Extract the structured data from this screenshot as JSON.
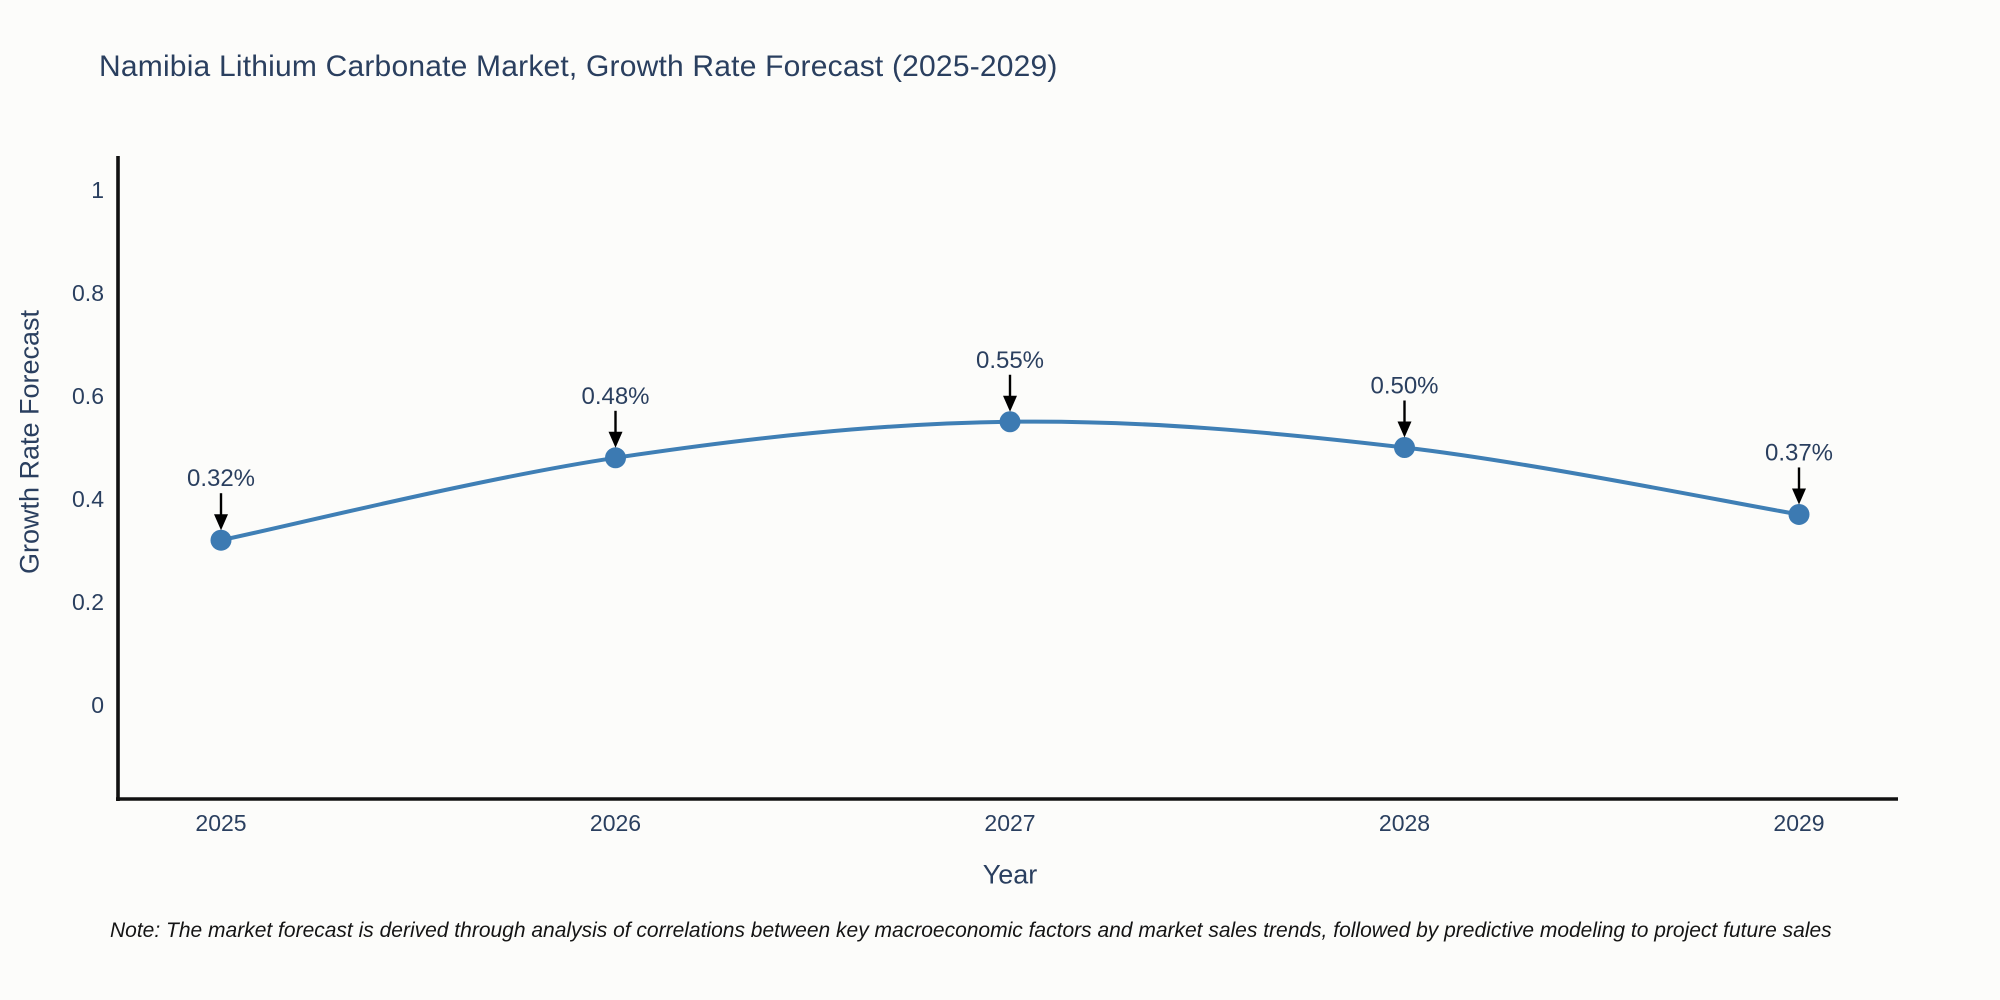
{
  "title": "Namibia Lithium Carbonate Market, Growth Rate Forecast (2025-2029)",
  "note": "Note: The market forecast is derived through analysis of correlations between key macroeconomic factors and market sales trends, followed by predictive modeling to project future sales",
  "chart_data": {
    "type": "line",
    "title": "Namibia Lithium Carbonate Market, Growth Rate Forecast (2025-2029)",
    "xlabel": "Year",
    "ylabel": "Growth Rate Forecast",
    "categories": [
      "2025",
      "2026",
      "2027",
      "2028",
      "2029"
    ],
    "series": [
      {
        "name": "Growth Rate Forecast",
        "values": [
          0.32,
          0.48,
          0.55,
          0.5,
          0.37
        ]
      }
    ],
    "annotations": [
      "0.32%",
      "0.48%",
      "0.55%",
      "0.50%",
      "0.37%"
    ],
    "yticks": [
      "1",
      "0.8",
      "0.6",
      "0.4",
      "0.2",
      "0"
    ],
    "ytick_values": [
      1,
      0.8,
      0.6,
      0.4,
      0.2,
      0
    ],
    "ylim": [
      -0.18,
      1.07
    ],
    "grid": false,
    "legend_position": "none",
    "line_shape": "spline",
    "colors": {
      "line": "#3f7fb5",
      "marker": "#3c7ab2",
      "axis": "#111111",
      "text": "#2a3f5f",
      "annotation_arrow": "#000000"
    }
  }
}
